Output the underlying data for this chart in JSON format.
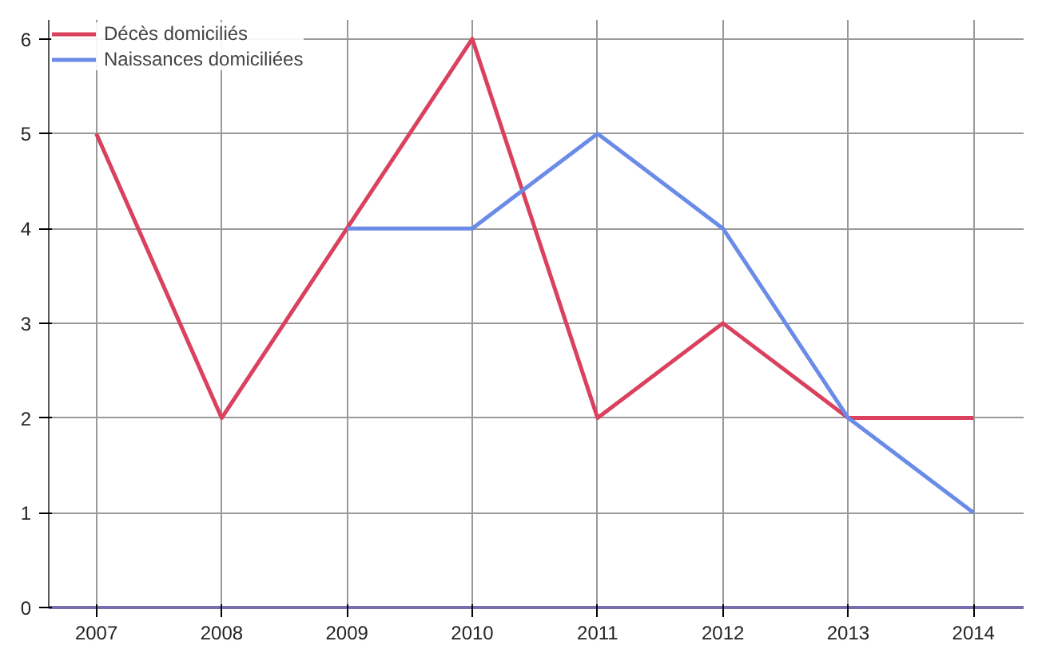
{
  "chart_data": {
    "type": "line",
    "x": [
      2007,
      2008,
      2009,
      2010,
      2011,
      2012,
      2013,
      2014
    ],
    "series": [
      {
        "name": "Décès domiciliés",
        "color": "#d9415f",
        "values": [
          5,
          2,
          4,
          6,
          2,
          3,
          2,
          2
        ]
      },
      {
        "name": "Naissances domiciliées",
        "color": "#6b8be8",
        "values": [
          null,
          null,
          4,
          4,
          5,
          4,
          2,
          1
        ]
      }
    ],
    "xlim": [
      2006.62,
      2014.4
    ],
    "xticks": [
      2007,
      2008,
      2009,
      2010,
      2011,
      2012,
      2013,
      2014
    ],
    "ylim": [
      0,
      6.2
    ],
    "yticks": [
      0,
      1,
      2,
      3,
      4,
      5,
      6
    ],
    "grid": true,
    "legend": "top left",
    "marker": "none",
    "line_style": "solid"
  }
}
